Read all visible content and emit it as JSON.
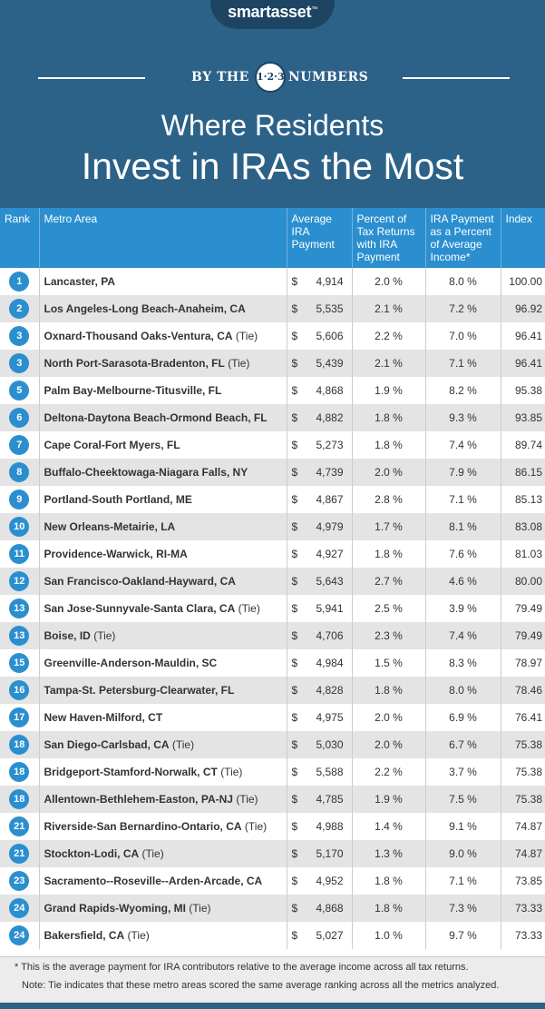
{
  "brand": {
    "name": "smartasset",
    "mark": "™"
  },
  "banner": {
    "left": "BY THE",
    "badge": "1·2·3",
    "right": "NUMBERS"
  },
  "title": {
    "line1": "Where Residents",
    "line2": "Invest in IRAs the Most"
  },
  "table": {
    "headers": [
      "Rank",
      "Metro Area",
      "Average IRA Payment",
      "Percent of Tax Returns with IRA Payment",
      "IRA Payment as a Percent of Average Income*",
      "Index"
    ],
    "currency_symbol": "$",
    "rows": [
      {
        "rank": "1",
        "metro": "Lancaster, PA",
        "tie": "",
        "payment": "4,914",
        "pct_returns": "2.0 %",
        "pct_income": "8.0 %",
        "index": "100.00"
      },
      {
        "rank": "2",
        "metro": "Los Angeles-Long Beach-Anaheim, CA",
        "tie": "",
        "payment": "5,535",
        "pct_returns": "2.1 %",
        "pct_income": "7.2 %",
        "index": "96.92"
      },
      {
        "rank": "3",
        "metro": "Oxnard-Thousand Oaks-Ventura, CA",
        "tie": "(Tie)",
        "payment": "5,606",
        "pct_returns": "2.2 %",
        "pct_income": "7.0 %",
        "index": "96.41"
      },
      {
        "rank": "3",
        "metro": "North Port-Sarasota-Bradenton, FL",
        "tie": "(Tie)",
        "payment": "5,439",
        "pct_returns": "2.1 %",
        "pct_income": "7.1 %",
        "index": "96.41"
      },
      {
        "rank": "5",
        "metro": "Palm Bay-Melbourne-Titusville, FL",
        "tie": "",
        "payment": "4,868",
        "pct_returns": "1.9 %",
        "pct_income": "8.2 %",
        "index": "95.38"
      },
      {
        "rank": "6",
        "metro": "Deltona-Daytona Beach-Ormond Beach, FL",
        "tie": "",
        "payment": "4,882",
        "pct_returns": "1.8 %",
        "pct_income": "9.3 %",
        "index": "93.85"
      },
      {
        "rank": "7",
        "metro": "Cape Coral-Fort Myers, FL",
        "tie": "",
        "payment": "5,273",
        "pct_returns": "1.8 %",
        "pct_income": "7.4 %",
        "index": "89.74"
      },
      {
        "rank": "8",
        "metro": "Buffalo-Cheektowaga-Niagara Falls, NY",
        "tie": "",
        "payment": "4,739",
        "pct_returns": "2.0 %",
        "pct_income": "7.9 %",
        "index": "86.15"
      },
      {
        "rank": "9",
        "metro": "Portland-South Portland, ME",
        "tie": "",
        "payment": "4,867",
        "pct_returns": "2.8 %",
        "pct_income": "7.1 %",
        "index": "85.13"
      },
      {
        "rank": "10",
        "metro": "New Orleans-Metairie, LA",
        "tie": "",
        "payment": "4,979",
        "pct_returns": "1.7 %",
        "pct_income": "8.1 %",
        "index": "83.08"
      },
      {
        "rank": "11",
        "metro": "Providence-Warwick, RI-MA",
        "tie": "",
        "payment": "4,927",
        "pct_returns": "1.8 %",
        "pct_income": "7.6 %",
        "index": "81.03"
      },
      {
        "rank": "12",
        "metro": "San Francisco-Oakland-Hayward, CA",
        "tie": "",
        "payment": "5,643",
        "pct_returns": "2.7 %",
        "pct_income": "4.6 %",
        "index": "80.00"
      },
      {
        "rank": "13",
        "metro": "San Jose-Sunnyvale-Santa Clara, CA",
        "tie": "(Tie)",
        "payment": "5,941",
        "pct_returns": "2.5 %",
        "pct_income": "3.9 %",
        "index": "79.49"
      },
      {
        "rank": "13",
        "metro": "Boise, ID",
        "tie": "(Tie)",
        "payment": "4,706",
        "pct_returns": "2.3 %",
        "pct_income": "7.4 %",
        "index": "79.49"
      },
      {
        "rank": "15",
        "metro": "Greenville-Anderson-Mauldin, SC",
        "tie": "",
        "payment": "4,984",
        "pct_returns": "1.5 %",
        "pct_income": "8.3 %",
        "index": "78.97"
      },
      {
        "rank": "16",
        "metro": "Tampa-St. Petersburg-Clearwater, FL",
        "tie": "",
        "payment": "4,828",
        "pct_returns": "1.8 %",
        "pct_income": "8.0 %",
        "index": "78.46"
      },
      {
        "rank": "17",
        "metro": "New Haven-Milford, CT",
        "tie": "",
        "payment": "4,975",
        "pct_returns": "2.0 %",
        "pct_income": "6.9 %",
        "index": "76.41"
      },
      {
        "rank": "18",
        "metro": "San Diego-Carlsbad, CA",
        "tie": "(Tie)",
        "payment": "5,030",
        "pct_returns": "2.0 %",
        "pct_income": "6.7 %",
        "index": "75.38"
      },
      {
        "rank": "18",
        "metro": "Bridgeport-Stamford-Norwalk, CT",
        "tie": "(Tie)",
        "payment": "5,588",
        "pct_returns": "2.2 %",
        "pct_income": "3.7 %",
        "index": "75.38"
      },
      {
        "rank": "18",
        "metro": "Allentown-Bethlehem-Easton, PA-NJ",
        "tie": "(Tie)",
        "payment": "4,785",
        "pct_returns": "1.9 %",
        "pct_income": "7.5 %",
        "index": "75.38"
      },
      {
        "rank": "21",
        "metro": "Riverside-San Bernardino-Ontario, CA",
        "tie": "(Tie)",
        "payment": "4,988",
        "pct_returns": "1.4 %",
        "pct_income": "9.1 %",
        "index": "74.87"
      },
      {
        "rank": "21",
        "metro": "Stockton-Lodi, CA",
        "tie": "(Tie)",
        "payment": "5,170",
        "pct_returns": "1.3 %",
        "pct_income": "9.0 %",
        "index": "74.87"
      },
      {
        "rank": "23",
        "metro": "Sacramento--Roseville--Arden-Arcade, CA",
        "tie": "",
        "payment": "4,952",
        "pct_returns": "1.8 %",
        "pct_income": "7.1 %",
        "index": "73.85"
      },
      {
        "rank": "24",
        "metro": "Grand Rapids-Wyoming, MI",
        "tie": "(Tie)",
        "payment": "4,868",
        "pct_returns": "1.8 %",
        "pct_income": "7.3 %",
        "index": "73.33"
      },
      {
        "rank": "24",
        "metro": "Bakersfield, CA",
        "tie": "(Tie)",
        "payment": "5,027",
        "pct_returns": "1.0 %",
        "pct_income": "9.7 %",
        "index": "73.33"
      }
    ]
  },
  "footnotes": {
    "asterisk": "* This is the average payment for IRA contributors relative to the average income across all tax returns.",
    "tie_note": "Note: Tie indicates that these metro areas scored the same average ranking across all the metrics analyzed."
  }
}
